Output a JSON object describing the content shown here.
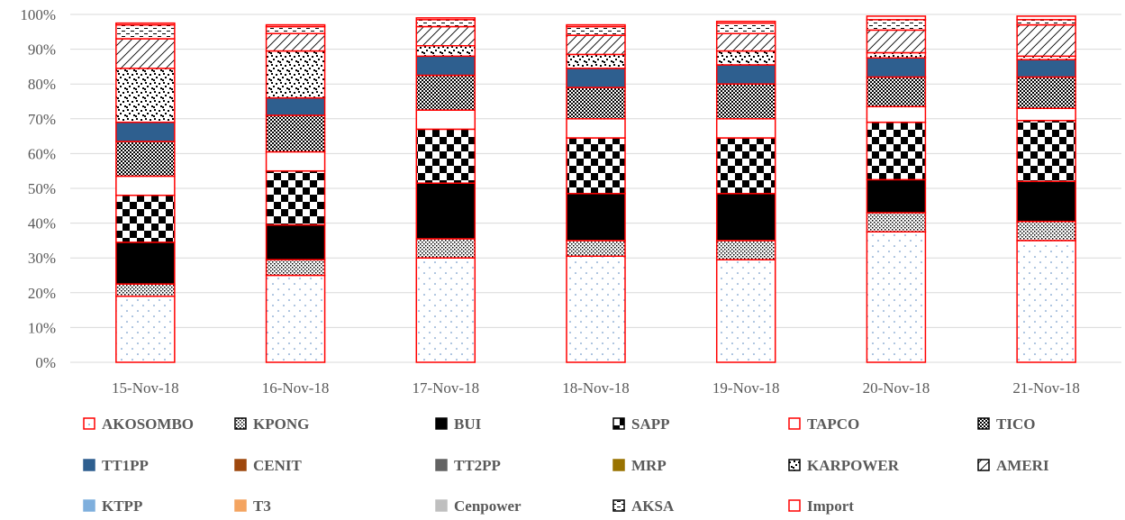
{
  "chart_data": {
    "type": "bar",
    "stacked": true,
    "percent": true,
    "categories": [
      "15-Nov-18",
      "16-Nov-18",
      "17-Nov-18",
      "18-Nov-18",
      "19-Nov-18",
      "20-Nov-18",
      "21-Nov-18"
    ],
    "ylim": [
      0,
      100
    ],
    "yticks": [
      "0%",
      "10%",
      "20%",
      "30%",
      "40%",
      "50%",
      "60%",
      "70%",
      "80%",
      "90%",
      "100%"
    ],
    "grid": true,
    "legend_position": "bottom",
    "series": [
      {
        "name": "AKOSOMBO",
        "pattern": "dots",
        "color": "#4f81bd",
        "values": [
          19,
          25,
          30,
          30.5,
          29.5,
          37.5,
          35
        ]
      },
      {
        "name": "KPONG",
        "pattern": "dense-dots",
        "color": "#000000",
        "values": [
          3.5,
          4.5,
          5.5,
          4.5,
          5.5,
          5.5,
          5.5
        ]
      },
      {
        "name": "BUI",
        "pattern": "solid",
        "color": "#000000",
        "values": [
          12,
          10,
          16,
          13.5,
          13.5,
          9.5,
          11.5
        ]
      },
      {
        "name": "SAPP",
        "pattern": "large-checker",
        "color": "#000000",
        "values": [
          13.5,
          15.5,
          15.5,
          16,
          16,
          16.5,
          17.5
        ]
      },
      {
        "name": "TAPCO",
        "pattern": "none",
        "color": "#ffffff",
        "values": [
          5.5,
          5.5,
          5.5,
          5.5,
          5.5,
          4.5,
          3.5
        ]
      },
      {
        "name": "TICO",
        "pattern": "small-checker",
        "color": "#000000",
        "values": [
          10,
          10.5,
          10,
          9,
          10,
          8.5,
          9
        ]
      },
      {
        "name": "TT1PP",
        "pattern": "solid",
        "color": "#2e5f8f",
        "values": [
          5.5,
          5,
          5.5,
          5.5,
          5.5,
          5.5,
          5
        ]
      },
      {
        "name": "CENIT",
        "pattern": "solid",
        "color": "#9e480e",
        "values": [
          0,
          0,
          0,
          0,
          0,
          0,
          0
        ]
      },
      {
        "name": "TT2PP",
        "pattern": "solid",
        "color": "#636363",
        "values": [
          0,
          0,
          0,
          0,
          0,
          0,
          0
        ]
      },
      {
        "name": "MRP",
        "pattern": "solid",
        "color": "#997300",
        "values": [
          0,
          0,
          0,
          0,
          0,
          0,
          0
        ]
      },
      {
        "name": "KARPOWER",
        "pattern": "confetti",
        "color": "#000000",
        "values": [
          15.5,
          13.5,
          3,
          4,
          4,
          1.5,
          1
        ]
      },
      {
        "name": "AMERI",
        "pattern": "diagonal",
        "color": "#000000",
        "values": [
          8.5,
          5,
          5.5,
          5.5,
          5,
          6.5,
          9
        ]
      },
      {
        "name": "KTPP",
        "pattern": "solid",
        "color": "#7fafdd",
        "values": [
          0,
          0,
          0,
          0,
          0,
          0,
          0
        ]
      },
      {
        "name": "T3",
        "pattern": "solid",
        "color": "#f4a460",
        "values": [
          0,
          0,
          0,
          0,
          0,
          0,
          0
        ]
      },
      {
        "name": "Cenpower",
        "pattern": "solid",
        "color": "#bfbfbf",
        "values": [
          0,
          0,
          0,
          0,
          0,
          0,
          0
        ]
      },
      {
        "name": "AKSA",
        "pattern": "dash",
        "color": "#000000",
        "values": [
          4,
          2,
          2,
          2.5,
          3,
          3,
          1.5
        ]
      },
      {
        "name": "Import",
        "pattern": "none",
        "color": "#ffffff",
        "values": [
          0.5,
          0.5,
          0.5,
          0.5,
          0.5,
          1,
          1
        ]
      }
    ],
    "legend_swatches": [
      "#ff0000",
      "#000000",
      "#000000",
      "#000000",
      "#ff0000",
      "#000000",
      "#2e5f8f",
      "#9e480e",
      "#636363",
      "#997300",
      "#000000",
      "#000000",
      "#7fafdd",
      "#f4a460",
      "#bfbfbf",
      "#000000",
      "#ff0000"
    ],
    "outline_color": "#ff0000",
    "grid_color": "#d9d9d9"
  }
}
